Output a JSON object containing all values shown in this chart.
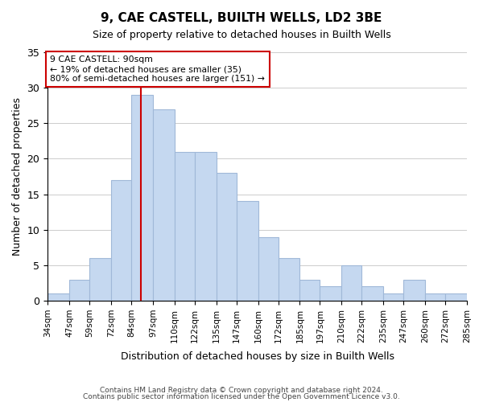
{
  "title": "9, CAE CASTELL, BUILTH WELLS, LD2 3BE",
  "subtitle": "Size of property relative to detached houses in Builth Wells",
  "xlabel": "Distribution of detached houses by size in Builth Wells",
  "ylabel": "Number of detached properties",
  "bar_color": "#c5d8f0",
  "bar_edgecolor": "#a0b8d8",
  "marker_color": "#cc0000",
  "marker_value": 90,
  "bin_edges": [
    34,
    47,
    59,
    72,
    84,
    97,
    110,
    122,
    135,
    147,
    160,
    172,
    185,
    197,
    210,
    222,
    235,
    247,
    260,
    272,
    285
  ],
  "counts": [
    1,
    3,
    6,
    17,
    29,
    27,
    21,
    21,
    18,
    14,
    9,
    6,
    3,
    2,
    5,
    2,
    1,
    3,
    1,
    1
  ],
  "tick_labels": [
    "34sqm",
    "47sqm",
    "59sqm",
    "72sqm",
    "84sqm",
    "97sqm",
    "110sqm",
    "122sqm",
    "135sqm",
    "147sqm",
    "160sqm",
    "172sqm",
    "185sqm",
    "197sqm",
    "210sqm",
    "222sqm",
    "235sqm",
    "247sqm",
    "260sqm",
    "272sqm",
    "285sqm"
  ],
  "annotation_title": "9 CAE CASTELL: 90sqm",
  "annotation_line1": "← 19% of detached houses are smaller (35)",
  "annotation_line2": "80% of semi-detached houses are larger (151) →",
  "footer1": "Contains HM Land Registry data © Crown copyright and database right 2024.",
  "footer2": "Contains public sector information licensed under the Open Government Licence v3.0.",
  "ylim": [
    0,
    35
  ],
  "yticks": [
    0,
    5,
    10,
    15,
    20,
    25,
    30,
    35
  ]
}
